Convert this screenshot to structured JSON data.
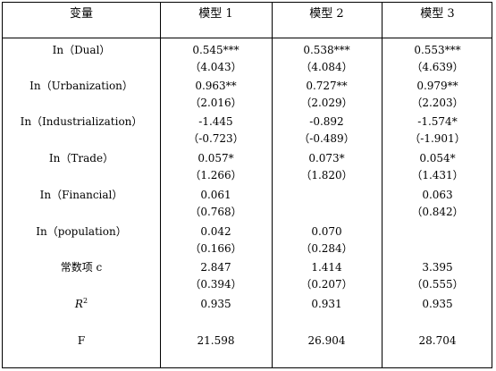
{
  "header": {
    "variable": "变量",
    "model1": "模型 1",
    "model2": "模型 2",
    "model3": "模型 3"
  },
  "rows": [
    {
      "label": "In（Dual）",
      "m1": [
        "0.545***",
        "（4.043）"
      ],
      "m2": [
        "0.538***",
        "（4.084）"
      ],
      "m3": [
        "0.553***",
        "（4.639）"
      ]
    },
    {
      "label": "In（Urbanization）",
      "m1": [
        "0.963**",
        "（2.016）"
      ],
      "m2": [
        "0.727**",
        "（2.029）"
      ],
      "m3": [
        "0.979**",
        "（2.203）"
      ]
    },
    {
      "label": "In（Industrialization）",
      "m1": [
        "-1.445",
        "（-0.723）"
      ],
      "m2": [
        "-0.892",
        "（-0.489）"
      ],
      "m3": [
        "-1.574*",
        "（-1.901）"
      ]
    },
    {
      "label": "In（Trade）",
      "m1": [
        "0.057*",
        "（1.266）"
      ],
      "m2": [
        "0.073*",
        "（1.820）"
      ],
      "m3": [
        "0.054*",
        "（1.431）"
      ]
    },
    {
      "label": "In（Financial）",
      "m1": [
        "0.061",
        "（0.768）"
      ],
      "m2": [
        "",
        ""
      ],
      "m3": [
        "0.063",
        "（0.842）"
      ]
    },
    {
      "label": "In（population）",
      "m1": [
        "0.042",
        "（0.166）"
      ],
      "m2": [
        "0.070",
        "（0.284）"
      ],
      "m3": [
        "",
        ""
      ]
    },
    {
      "label": "常数项 c",
      "m1": [
        "2.847",
        "（0.394）"
      ],
      "m2": [
        "1.414",
        "（0.207）"
      ],
      "m3": [
        "3.395",
        "（0.555）"
      ]
    }
  ],
  "r2": {
    "label_base": "R",
    "label_sup": "2",
    "m1": "0.935",
    "m2": "0.931",
    "m3": "0.935"
  },
  "f": {
    "label": "F",
    "m1": "21.598",
    "m2": "26.904",
    "m3": "28.704"
  }
}
